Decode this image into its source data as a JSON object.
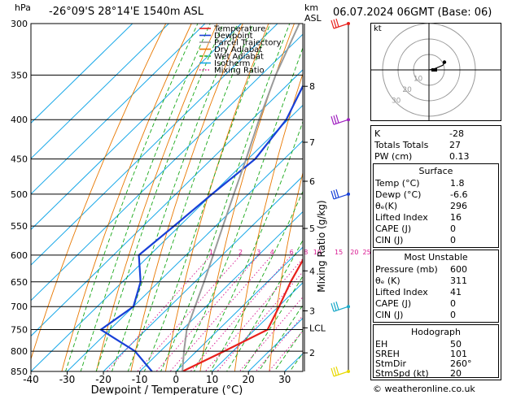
{
  "header": {
    "hpa_label": "hPa",
    "location": "-26°09'S  28°14'E  1540m  ASL",
    "km_label": "km",
    "asl_label": "ASL",
    "datetime": "06.07.2024  06GMT  (Base: 06)"
  },
  "legend": [
    {
      "label": "Temperature",
      "color": "#e8201c"
    },
    {
      "label": "Dewpoint",
      "color": "#1840d8"
    },
    {
      "label": "Parcel Trajectory",
      "color": "#9a9a9a"
    },
    {
      "label": "Dry Adiabat",
      "color": "#e87800"
    },
    {
      "label": "Wet Adiabat",
      "color": "#18a818"
    },
    {
      "label": "Isotherm",
      "color": "#18a8e8"
    },
    {
      "label": "Mixing Ratio",
      "color": "#d81890"
    }
  ],
  "chart_data": {
    "type": "line",
    "title": "",
    "xlabel": "Dewpoint / Temperature (°C)",
    "ylabel_right": "Mixing Ratio (g/kg)",
    "xlim": [
      -40,
      35
    ],
    "pressure_range": [
      850,
      300
    ],
    "pressure_ticks": [
      300,
      350,
      400,
      450,
      500,
      550,
      600,
      650,
      700,
      750,
      800,
      850
    ],
    "x_ticks": [
      -40,
      -30,
      -20,
      -10,
      0,
      10,
      20,
      30
    ],
    "km_ticks": [
      {
        "label": "8",
        "p": 362
      },
      {
        "label": "7",
        "p": 428
      },
      {
        "label": "6",
        "p": 481
      },
      {
        "label": "5",
        "p": 554
      },
      {
        "label": "4",
        "p": 629
      },
      {
        "label": "3",
        "p": 709
      },
      {
        "label": "LCL",
        "p": 746
      },
      {
        "label": "2",
        "p": 804
      }
    ],
    "mixing_ratio_labels": [
      "1",
      "2",
      "3",
      "4",
      "6",
      "8",
      "10",
      "15",
      "20",
      "25"
    ],
    "mixing_ratio_values": [
      1,
      2,
      3,
      4,
      6,
      8,
      10,
      15,
      20,
      25
    ],
    "series": [
      {
        "name": "Temperature",
        "color": "#e8201c",
        "points": [
          [
            850,
            1.8
          ],
          [
            800,
            7.6
          ],
          [
            750,
            13.5
          ],
          [
            700,
            10.2
          ],
          [
            650,
            6.4
          ],
          [
            600,
            3.0
          ],
          [
            550,
            -2.3
          ],
          [
            500,
            -8.5
          ],
          [
            450,
            -14.5
          ],
          [
            400,
            -21.0
          ],
          [
            350,
            -27.5
          ],
          [
            300,
            -33.0
          ]
        ]
      },
      {
        "name": "Dewpoint",
        "color": "#1840d8",
        "points": [
          [
            850,
            -6.6
          ],
          [
            800,
            -17.0
          ],
          [
            750,
            -32.5
          ],
          [
            700,
            -30.0
          ],
          [
            650,
            -35.0
          ],
          [
            600,
            -43.0
          ],
          [
            550,
            -41.5
          ],
          [
            500,
            -40.0
          ],
          [
            450,
            -38.0
          ],
          [
            400,
            -40.5
          ],
          [
            350,
            -47.0
          ],
          [
            300,
            -55.0
          ]
        ]
      },
      {
        "name": "Parcel Trajectory",
        "color": "#9a9a9a",
        "points": [
          [
            850,
            1.8
          ],
          [
            800,
            -3.5
          ],
          [
            750,
            -8.8
          ],
          [
            700,
            -13.0
          ],
          [
            650,
            -17.5
          ],
          [
            600,
            -22.5
          ],
          [
            550,
            -28.0
          ],
          [
            500,
            -34.0
          ],
          [
            450,
            -40.5
          ],
          [
            400,
            -48.0
          ],
          [
            350,
            -56.0
          ],
          [
            300,
            -64.0
          ]
        ]
      }
    ]
  },
  "wind_barbs": [
    {
      "p": 300,
      "color": "#e8201c"
    },
    {
      "p": 400,
      "color": "#a020c0"
    },
    {
      "p": 500,
      "color": "#1840d8"
    },
    {
      "p": 700,
      "color": "#18a8c8"
    },
    {
      "p": 850,
      "color": "#e8d800"
    }
  ],
  "hodograph": {
    "label": "kt",
    "ring_labels": [
      "10",
      "20",
      "30"
    ],
    "points": [
      [
        0,
        0
      ],
      [
        3,
        0.5
      ],
      [
        9,
        3
      ],
      [
        10,
        5
      ]
    ]
  },
  "indices": {
    "rows": [
      {
        "key": "K",
        "value": "-28"
      },
      {
        "key": "Totals Totals",
        "value": "27"
      },
      {
        "key": "PW (cm)",
        "value": "0.13"
      }
    ],
    "surface": {
      "title": "Surface",
      "rows": [
        {
          "key": "Temp (°C)",
          "value": "1.8"
        },
        {
          "key": "Dewp (°C)",
          "value": "-6.6"
        },
        {
          "key": "θₑ(K)",
          "value": "296"
        },
        {
          "key": "Lifted Index",
          "value": "16"
        },
        {
          "key": "CAPE (J)",
          "value": "0"
        },
        {
          "key": "CIN (J)",
          "value": "0"
        }
      ]
    },
    "most_unstable": {
      "title": "Most Unstable",
      "rows": [
        {
          "key": "Pressure (mb)",
          "value": "600"
        },
        {
          "key": "θₑ (K)",
          "value": "311"
        },
        {
          "key": "Lifted Index",
          "value": "41"
        },
        {
          "key": "CAPE (J)",
          "value": "0"
        },
        {
          "key": "CIN (J)",
          "value": "0"
        }
      ]
    },
    "hodograph_box": {
      "title": "Hodograph",
      "rows": [
        {
          "key": "EH",
          "value": "50"
        },
        {
          "key": "SREH",
          "value": "101"
        },
        {
          "key": "StmDir",
          "value": "260°"
        },
        {
          "key": "StmSpd (kt)",
          "value": "20"
        }
      ]
    }
  },
  "footer": {
    "credit": "© weatheronline.co.uk"
  }
}
